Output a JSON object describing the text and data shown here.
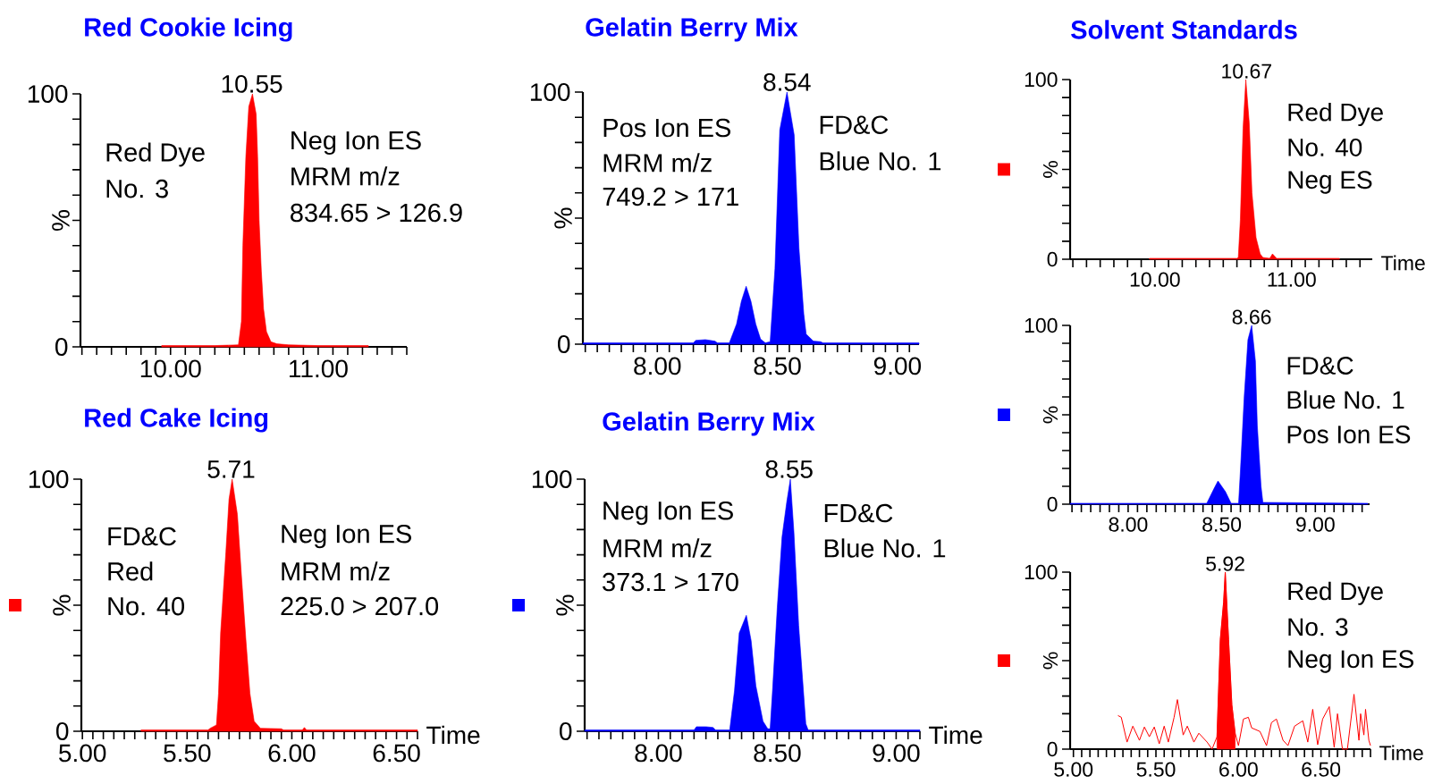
{
  "chart_data": [
    {
      "type": "area",
      "title": "Red Cookie Icing",
      "ylabel": "%",
      "xlim": [
        9.39,
        11.6
      ],
      "ylim": [
        0,
        100
      ],
      "xticks": [
        {
          "value": 9.4,
          "label": null
        },
        {
          "value": 9.5,
          "label": null
        },
        {
          "value": 9.6,
          "label": null
        },
        {
          "value": 9.7,
          "label": null
        },
        {
          "value": 9.8,
          "label": null
        },
        {
          "value": 9.9,
          "label": null
        },
        {
          "value": 10,
          "label": "10.00"
        },
        {
          "value": 10.1,
          "label": null
        },
        {
          "value": 10.2,
          "label": null
        },
        {
          "value": 10.3,
          "label": null
        },
        {
          "value": 10.4,
          "label": null
        },
        {
          "value": 10.5,
          "label": null
        },
        {
          "value": 10.6,
          "label": null
        },
        {
          "value": 10.7,
          "label": null
        },
        {
          "value": 10.8,
          "label": null
        },
        {
          "value": 10.9,
          "label": null
        },
        {
          "value": 11,
          "label": "11.00"
        },
        {
          "value": 11.1,
          "label": null
        },
        {
          "value": 11.2,
          "label": null
        },
        {
          "value": 11.3,
          "label": null
        },
        {
          "value": 11.4,
          "label": null
        },
        {
          "value": 11.5,
          "label": null
        },
        {
          "value": 11.6,
          "label": null
        }
      ],
      "yticks": [
        0,
        {
          "value": 10,
          "label": null
        },
        {
          "value": 20,
          "label": null
        },
        {
          "value": 30,
          "label": null
        },
        {
          "value": 40,
          "label": null
        },
        {
          "value": 50,
          "label": null
        },
        {
          "value": 60,
          "label": null
        },
        {
          "value": 70,
          "label": null
        },
        {
          "value": 80,
          "label": null
        },
        {
          "value": 90,
          "label": null
        },
        100
      ],
      "series": [
        {
          "color": "#ff0000",
          "x": [
            9.94,
            10.3,
            10.46,
            10.48,
            10.49,
            10.51,
            10.53,
            10.555,
            10.58,
            10.59,
            10.6,
            10.615,
            10.63,
            10.65,
            10.68,
            10.72,
            10.8,
            11.0,
            11.34
          ],
          "values": [
            0.5,
            0.5,
            0.8,
            10,
            40,
            75,
            95,
            100,
            92,
            75,
            50,
            30,
            15,
            6,
            2,
            1.2,
            0.8,
            0.5,
            0.5
          ]
        }
      ],
      "annotations": [
        {
          "text": "10.55",
          "x": 10.55,
          "y": 100
        },
        "Red Dye",
        "No. 3",
        "Neg Ion ES",
        "MRM m/z",
        "834.65 > 126.9"
      ]
    },
    {
      "type": "area",
      "title": "Gelatin Berry Mix",
      "ylabel": "%",
      "xlim": [
        7.69,
        9.09
      ],
      "ylim": [
        0,
        100
      ],
      "xticks": [
        {
          "value": 7.7,
          "label": null
        },
        {
          "value": 7.75,
          "label": null
        },
        {
          "value": 7.8,
          "label": null
        },
        {
          "value": 7.85,
          "label": null
        },
        {
          "value": 7.9,
          "label": null
        },
        {
          "value": 7.95,
          "label": null
        },
        {
          "value": 8,
          "label": "8.00"
        },
        {
          "value": 8.05,
          "label": null
        },
        {
          "value": 8.1,
          "label": null
        },
        {
          "value": 8.15,
          "label": null
        },
        {
          "value": 8.2,
          "label": null
        },
        {
          "value": 8.25,
          "label": null
        },
        {
          "value": 8.3,
          "label": null
        },
        {
          "value": 8.35,
          "label": null
        },
        {
          "value": 8.4,
          "label": null
        },
        {
          "value": 8.45,
          "label": null
        },
        {
          "value": 8.5,
          "label": "8.50"
        },
        {
          "value": 8.55,
          "label": null
        },
        {
          "value": 8.6,
          "label": null
        },
        {
          "value": 8.65,
          "label": null
        },
        {
          "value": 8.7,
          "label": null
        },
        {
          "value": 8.75,
          "label": null
        },
        {
          "value": 8.8,
          "label": null
        },
        {
          "value": 8.85,
          "label": null
        },
        {
          "value": 8.9,
          "label": null
        },
        {
          "value": 8.95,
          "label": null
        },
        {
          "value": 9,
          "label": "9.00"
        },
        {
          "value": 9.05,
          "label": null
        }
      ],
      "yticks": [
        0,
        {
          "value": 10,
          "label": null
        },
        {
          "value": 20,
          "label": null
        },
        {
          "value": 30,
          "label": null
        },
        {
          "value": 40,
          "label": null
        },
        {
          "value": 50,
          "label": null
        },
        {
          "value": 60,
          "label": null
        },
        {
          "value": 70,
          "label": null
        },
        {
          "value": 80,
          "label": null
        },
        {
          "value": 90,
          "label": null
        },
        100
      ],
      "series": [
        {
          "color": "#0000ff",
          "x": [
            7.69,
            8.15,
            8.16,
            8.2,
            8.24,
            8.25,
            8.3,
            8.33,
            8.35,
            8.37,
            8.39,
            8.41,
            8.43,
            8.45,
            8.47,
            8.49,
            8.51,
            8.54,
            8.57,
            8.59,
            8.61,
            8.62,
            8.65,
            8.68,
            8.69,
            9.09
          ],
          "values": [
            0.5,
            0.5,
            1.5,
            1.8,
            1.2,
            0.5,
            0.5,
            8,
            17,
            23,
            17,
            8,
            2,
            0.5,
            1,
            30,
            85,
            100,
            83,
            38,
            12,
            4,
            1.2,
            1,
            0.5,
            0.5
          ]
        }
      ],
      "annotations": [
        {
          "text": "8.54",
          "x": 8.54,
          "y": 100
        },
        "Pos Ion ES",
        "MRM m/z",
        "749.2 > 171",
        "FD&C",
        "Blue No. 1"
      ]
    },
    {
      "type": "area",
      "title": "Red Cake Icing",
      "ylabel": "%",
      "xlabel": "Time",
      "xlim": [
        4.995,
        6.6
      ],
      "ylim": [
        0,
        100
      ],
      "xticks": [
        {
          "value": 5,
          "label": "5.00"
        },
        {
          "value": 5.05,
          "label": null
        },
        {
          "value": 5.1,
          "label": null
        },
        {
          "value": 5.15,
          "label": null
        },
        {
          "value": 5.2,
          "label": null
        },
        {
          "value": 5.25,
          "label": null
        },
        {
          "value": 5.3,
          "label": null
        },
        {
          "value": 5.35,
          "label": null
        },
        {
          "value": 5.4,
          "label": null
        },
        {
          "value": 5.45,
          "label": null
        },
        {
          "value": 5.5,
          "label": "5.50"
        },
        {
          "value": 5.55,
          "label": null
        },
        {
          "value": 5.6,
          "label": null
        },
        {
          "value": 5.65,
          "label": null
        },
        {
          "value": 5.7,
          "label": null
        },
        {
          "value": 5.75,
          "label": null
        },
        {
          "value": 5.8,
          "label": null
        },
        {
          "value": 5.85,
          "label": null
        },
        {
          "value": 5.9,
          "label": null
        },
        {
          "value": 5.95,
          "label": null
        },
        {
          "value": 6,
          "label": "6.00"
        },
        {
          "value": 6.05,
          "label": null
        },
        {
          "value": 6.1,
          "label": null
        },
        {
          "value": 6.15,
          "label": null
        },
        {
          "value": 6.2,
          "label": null
        },
        {
          "value": 6.25,
          "label": null
        },
        {
          "value": 6.3,
          "label": null
        },
        {
          "value": 6.35,
          "label": null
        },
        {
          "value": 6.4,
          "label": null
        },
        {
          "value": 6.45,
          "label": null
        },
        {
          "value": 6.5,
          "label": "6.50"
        },
        {
          "value": 6.55,
          "label": null
        },
        {
          "value": 6.6,
          "label": null
        }
      ],
      "yticks": [
        0,
        {
          "value": 10,
          "label": null
        },
        {
          "value": 20,
          "label": null
        },
        {
          "value": 30,
          "label": null
        },
        {
          "value": 40,
          "label": null
        },
        {
          "value": 50,
          "label": null
        },
        {
          "value": 60,
          "label": null
        },
        {
          "value": 70,
          "label": null
        },
        {
          "value": 80,
          "label": null
        },
        {
          "value": 90,
          "label": null
        },
        100
      ],
      "series": [
        {
          "color": "#ff0000",
          "x": [
            5.28,
            5.6,
            5.61,
            5.64,
            5.65,
            5.66,
            5.685,
            5.7,
            5.715,
            5.74,
            5.76,
            5.78,
            5.8,
            5.82,
            5.85,
            5.95,
            5.96,
            6.05,
            6.06,
            6.07,
            6.6
          ],
          "values": [
            0.5,
            0.5,
            1.2,
            2.5,
            15,
            39,
            71,
            92,
            100,
            86,
            61,
            37,
            15,
            4,
            1.2,
            1,
            0.5,
            0.5,
            1.5,
            0.5,
            0.5
          ]
        }
      ],
      "annotations": [
        {
          "text": "5.71",
          "x": 5.71,
          "y": 100
        },
        "FD&C",
        "Red",
        "No. 40",
        "Neg Ion ES",
        "MRM m/z",
        "225.0 > 207.0"
      ]
    },
    {
      "type": "area",
      "title": "Gelatin Berry Mix",
      "ylabel": "%",
      "xlabel": "Time",
      "xlim": [
        7.69,
        9.1
      ],
      "ylim": [
        0,
        100
      ],
      "xticks": [
        {
          "value": 7.7,
          "label": null
        },
        {
          "value": 7.75,
          "label": null
        },
        {
          "value": 7.8,
          "label": null
        },
        {
          "value": 7.85,
          "label": null
        },
        {
          "value": 7.9,
          "label": null
        },
        {
          "value": 7.95,
          "label": null
        },
        {
          "value": 8,
          "label": "8.00"
        },
        {
          "value": 8.05,
          "label": null
        },
        {
          "value": 8.1,
          "label": null
        },
        {
          "value": 8.15,
          "label": null
        },
        {
          "value": 8.2,
          "label": null
        },
        {
          "value": 8.25,
          "label": null
        },
        {
          "value": 8.3,
          "label": null
        },
        {
          "value": 8.35,
          "label": null
        },
        {
          "value": 8.4,
          "label": null
        },
        {
          "value": 8.45,
          "label": null
        },
        {
          "value": 8.5,
          "label": "8.50"
        },
        {
          "value": 8.55,
          "label": null
        },
        {
          "value": 8.6,
          "label": null
        },
        {
          "value": 8.65,
          "label": null
        },
        {
          "value": 8.7,
          "label": null
        },
        {
          "value": 8.75,
          "label": null
        },
        {
          "value": 8.8,
          "label": null
        },
        {
          "value": 8.85,
          "label": null
        },
        {
          "value": 8.9,
          "label": null
        },
        {
          "value": 8.95,
          "label": null
        },
        {
          "value": 9,
          "label": "9.00"
        },
        {
          "value": 9.05,
          "label": null
        },
        {
          "value": 9.1,
          "label": null
        }
      ],
      "yticks": [
        0,
        {
          "value": 10,
          "label": null
        },
        {
          "value": 20,
          "label": null
        },
        {
          "value": 30,
          "label": null
        },
        {
          "value": 40,
          "label": null
        },
        {
          "value": 50,
          "label": null
        },
        {
          "value": 60,
          "label": null
        },
        {
          "value": 70,
          "label": null
        },
        {
          "value": 80,
          "label": null
        },
        {
          "value": 90,
          "label": null
        },
        100
      ],
      "series": [
        {
          "color": "#0000ff",
          "x": [
            7.69,
            8.15,
            8.16,
            8.2,
            8.23,
            8.24,
            8.3,
            8.32,
            8.34,
            8.37,
            8.39,
            8.41,
            8.44,
            8.46,
            8.47,
            8.48,
            8.5,
            8.52,
            8.54,
            8.555,
            8.57,
            8.59,
            8.61,
            8.62,
            8.63,
            9.1
          ],
          "values": [
            0.5,
            0.5,
            1.8,
            1.8,
            1.5,
            0.5,
            0.5,
            16,
            39,
            46,
            36,
            18,
            4,
            1,
            1,
            16,
            49,
            77,
            91,
            100,
            79,
            42,
            16,
            3,
            0.5,
            0.5
          ]
        }
      ],
      "annotations": [
        {
          "text": "8.55",
          "x": 8.55,
          "y": 100
        },
        "Neg Ion ES",
        "MRM m/z",
        "373.1 > 170",
        "FD&C",
        "Blue No. 1"
      ]
    },
    {
      "type": "area",
      "title": "Solvent Standards",
      "ylabel": "%",
      "xlabel": "Time",
      "xlim": [
        9.38,
        11.59
      ],
      "ylim": [
        0,
        100
      ],
      "xticks": [
        {
          "value": 9.4,
          "label": null
        },
        {
          "value": 9.5,
          "label": null
        },
        {
          "value": 9.6,
          "label": null
        },
        {
          "value": 9.7,
          "label": null
        },
        {
          "value": 9.8,
          "label": null
        },
        {
          "value": 9.9,
          "label": null
        },
        {
          "value": 10,
          "label": "10.00"
        },
        {
          "value": 10.1,
          "label": null
        },
        {
          "value": 10.2,
          "label": null
        },
        {
          "value": 10.3,
          "label": null
        },
        {
          "value": 10.4,
          "label": null
        },
        {
          "value": 10.5,
          "label": null
        },
        {
          "value": 10.6,
          "label": null
        },
        {
          "value": 10.7,
          "label": null
        },
        {
          "value": 10.8,
          "label": null
        },
        {
          "value": 10.9,
          "label": null
        },
        {
          "value": 11,
          "label": "11.00"
        },
        {
          "value": 11.1,
          "label": null
        },
        {
          "value": 11.2,
          "label": null
        },
        {
          "value": 11.3,
          "label": null
        },
        {
          "value": 11.4,
          "label": null
        },
        {
          "value": 11.5,
          "label": null
        }
      ],
      "yticks": [
        0,
        {
          "value": 10,
          "label": null
        },
        {
          "value": 20,
          "label": null
        },
        {
          "value": 30,
          "label": null
        },
        {
          "value": 40,
          "label": null
        },
        {
          "value": 50,
          "label": null
        },
        {
          "value": 60,
          "label": null
        },
        {
          "value": 70,
          "label": null
        },
        {
          "value": 80,
          "label": null
        },
        {
          "value": 90,
          "label": null
        },
        100
      ],
      "series": [
        {
          "color": "#ff0000",
          "x": [
            9.96,
            10.6,
            10.61,
            10.625,
            10.645,
            10.665,
            10.69,
            10.71,
            10.74,
            10.77,
            10.79,
            10.84,
            10.86,
            10.89,
            11.35
          ],
          "values": [
            0.5,
            0.5,
            1,
            22,
            73,
            100,
            76,
            37,
            12,
            3,
            1,
            0.5,
            3,
            0.5,
            0.5
          ]
        }
      ],
      "annotations": [
        {
          "text": "10.67",
          "x": 10.67,
          "y": 100
        },
        "Red Dye",
        "No. 40",
        "Neg ES"
      ]
    },
    {
      "type": "area",
      "ylabel": "%",
      "xlim": [
        7.69,
        9.29
      ],
      "ylim": [
        0,
        100
      ],
      "xticks": [
        {
          "value": 7.7,
          "label": null
        },
        {
          "value": 7.75,
          "label": null
        },
        {
          "value": 7.8,
          "label": null
        },
        {
          "value": 7.85,
          "label": null
        },
        {
          "value": 7.9,
          "label": null
        },
        {
          "value": 7.95,
          "label": null
        },
        {
          "value": 8,
          "label": "8.00"
        },
        {
          "value": 8.05,
          "label": null
        },
        {
          "value": 8.1,
          "label": null
        },
        {
          "value": 8.15,
          "label": null
        },
        {
          "value": 8.2,
          "label": null
        },
        {
          "value": 8.25,
          "label": null
        },
        {
          "value": 8.3,
          "label": null
        },
        {
          "value": 8.35,
          "label": null
        },
        {
          "value": 8.4,
          "label": null
        },
        {
          "value": 8.45,
          "label": null
        },
        {
          "value": 8.5,
          "label": "8.50"
        },
        {
          "value": 8.55,
          "label": null
        },
        {
          "value": 8.6,
          "label": null
        },
        {
          "value": 8.65,
          "label": null
        },
        {
          "value": 8.7,
          "label": null
        },
        {
          "value": 8.75,
          "label": null
        },
        {
          "value": 8.8,
          "label": null
        },
        {
          "value": 8.85,
          "label": null
        },
        {
          "value": 8.9,
          "label": null
        },
        {
          "value": 8.95,
          "label": null
        },
        {
          "value": 9,
          "label": "9.00"
        },
        {
          "value": 9.05,
          "label": null
        },
        {
          "value": 9.1,
          "label": null
        },
        {
          "value": 9.15,
          "label": null
        },
        {
          "value": 9.2,
          "label": null
        },
        {
          "value": 9.25,
          "label": null
        }
      ],
      "yticks": [
        0,
        {
          "value": 10,
          "label": null
        },
        {
          "value": 20,
          "label": null
        },
        {
          "value": 30,
          "label": null
        },
        {
          "value": 40,
          "label": null
        },
        {
          "value": 50,
          "label": null
        },
        {
          "value": 60,
          "label": null
        },
        {
          "value": 70,
          "label": null
        },
        {
          "value": 80,
          "label": null
        },
        {
          "value": 90,
          "label": null
        },
        100
      ],
      "series": [
        {
          "color": "#0000ff",
          "x": [
            7.69,
            8.42,
            8.46,
            8.48,
            8.52,
            8.55,
            8.59,
            8.6,
            8.62,
            8.64,
            8.66,
            8.68,
            8.69,
            8.71,
            8.72,
            9.28
          ],
          "values": [
            0.5,
            0.5,
            9,
            13,
            7,
            0.5,
            0.5,
            19,
            60,
            92,
            100,
            80,
            44,
            10,
            1,
            0.5
          ]
        }
      ],
      "annotations": [
        {
          "text": "8.66",
          "x": 8.66,
          "y": 100
        },
        "FD&C",
        "Blue No. 1",
        "Pos Ion ES"
      ]
    },
    {
      "type": "area",
      "ylabel": "%",
      "xlabel": "Time",
      "xlim": [
        4.98,
        6.8
      ],
      "ylim": [
        0,
        100
      ],
      "xticks": [
        {
          "value": 5,
          "label": "5.00"
        },
        {
          "value": 5.05,
          "label": null
        },
        {
          "value": 5.1,
          "label": null
        },
        {
          "value": 5.15,
          "label": null
        },
        {
          "value": 5.2,
          "label": null
        },
        {
          "value": 5.25,
          "label": null
        },
        {
          "value": 5.3,
          "label": null
        },
        {
          "value": 5.35,
          "label": null
        },
        {
          "value": 5.4,
          "label": null
        },
        {
          "value": 5.45,
          "label": null
        },
        {
          "value": 5.5,
          "label": "5.50"
        },
        {
          "value": 5.55,
          "label": null
        },
        {
          "value": 5.6,
          "label": null
        },
        {
          "value": 5.65,
          "label": null
        },
        {
          "value": 5.7,
          "label": null
        },
        {
          "value": 5.75,
          "label": null
        },
        {
          "value": 5.8,
          "label": null
        },
        {
          "value": 5.85,
          "label": null
        },
        {
          "value": 5.9,
          "label": null
        },
        {
          "value": 5.95,
          "label": null
        },
        {
          "value": 6,
          "label": "6.00"
        },
        {
          "value": 6.05,
          "label": null
        },
        {
          "value": 6.1,
          "label": null
        },
        {
          "value": 6.15,
          "label": null
        },
        {
          "value": 6.2,
          "label": null
        },
        {
          "value": 6.25,
          "label": null
        },
        {
          "value": 6.3,
          "label": null
        },
        {
          "value": 6.35,
          "label": null
        },
        {
          "value": 6.4,
          "label": null
        },
        {
          "value": 6.45,
          "label": null
        },
        {
          "value": 6.5,
          "label": "6.50"
        },
        {
          "value": 6.55,
          "label": null
        },
        {
          "value": 6.6,
          "label": null
        },
        {
          "value": 6.65,
          "label": null
        },
        {
          "value": 6.7,
          "label": null
        },
        {
          "value": 6.75,
          "label": null
        },
        {
          "value": 6.8,
          "label": null
        }
      ],
      "yticks": [
        0,
        {
          "value": 10,
          "label": null
        },
        {
          "value": 20,
          "label": null
        },
        {
          "value": 30,
          "label": null
        },
        {
          "value": 40,
          "label": null
        },
        {
          "value": 50,
          "label": null
        },
        {
          "value": 60,
          "label": null
        },
        {
          "value": 70,
          "label": null
        },
        {
          "value": 80,
          "label": null
        },
        {
          "value": 90,
          "label": null
        },
        100
      ],
      "series": [
        {
          "type": "line",
          "color": "#ff0000",
          "x": [
            5.27,
            5.29,
            5.325,
            5.36,
            5.4,
            5.43,
            5.46,
            5.49,
            5.52,
            5.55,
            5.575,
            5.61,
            5.63,
            5.665,
            5.69,
            5.73,
            5.76,
            5.81,
            5.84,
            5.87,
            5.89,
            5.91,
            5.92,
            5.94,
            5.96,
            5.98,
            6.0,
            6.03,
            6.06,
            6.08,
            6.13,
            6.17,
            6.2,
            6.23,
            6.27,
            6.3,
            6.34,
            6.39,
            6.42,
            6.45,
            6.48,
            6.51,
            6.55,
            6.58,
            6.6,
            6.63,
            6.66,
            6.7,
            6.73,
            6.74,
            6.76,
            6.77,
            6.79,
            6.8
          ],
          "values": [
            19,
            18,
            4,
            13,
            5,
            12.5,
            7,
            12.5,
            3,
            13,
            4,
            18,
            28,
            8,
            13,
            4,
            9,
            4,
            0,
            7,
            62,
            83,
            100,
            62,
            25,
            9,
            2,
            17,
            18,
            12,
            10,
            2,
            15,
            17,
            5,
            2,
            13,
            16,
            4,
            22.5,
            2.5,
            17,
            24,
            1,
            20,
            0,
            0,
            31,
            5,
            20,
            8,
            22.5,
            5,
            2
          ]
        },
        {
          "type": "area",
          "color": "#ff0000",
          "x": [
            5.87,
            5.89,
            5.91,
            5.92,
            5.94,
            5.96,
            5.98
          ],
          "values": [
            7,
            62,
            83,
            100,
            62,
            25,
            9
          ]
        }
      ],
      "annotations": [
        {
          "text": "5.92",
          "x": 5.92,
          "y": 100
        },
        "Red Dye",
        "No. 3",
        "Neg Ion ES"
      ]
    }
  ]
}
